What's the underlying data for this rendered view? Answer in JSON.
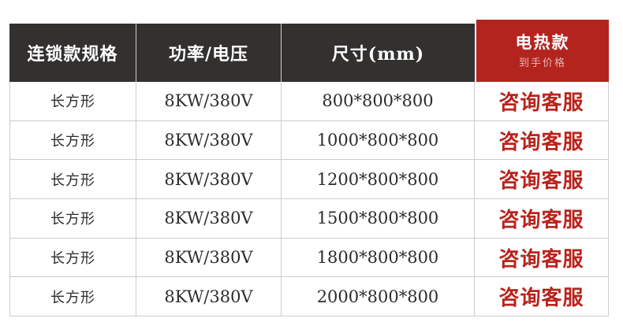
{
  "table": {
    "header": {
      "col_specs": "连锁款规格",
      "col_power": "功率/电压",
      "col_size": "尺寸(mm)",
      "col_price_title": "电热款",
      "col_price_sub": "到手价格"
    },
    "rows": [
      {
        "shape": "长方形",
        "power": "8KW/380V",
        "size": "800*800*800",
        "price": "咨询客服"
      },
      {
        "shape": "长方形",
        "power": "8KW/380V",
        "size": "1000*800*800",
        "price": "咨询客服"
      },
      {
        "shape": "长方形",
        "power": "8KW/380V",
        "size": "1200*800*800",
        "price": "咨询客服"
      },
      {
        "shape": "长方形",
        "power": "8KW/380V",
        "size": "1500*800*800",
        "price": "咨询客服"
      },
      {
        "shape": "长方形",
        "power": "8KW/380V",
        "size": "1800*800*800",
        "price": "咨询客服"
      },
      {
        "shape": "长方形",
        "power": "8KW/380V",
        "size": "2000*800*800",
        "price": "咨询客服"
      }
    ]
  },
  "colors": {
    "header_bg": "#333130",
    "accent_red": "#b4241f",
    "price_text_red": "#b9231c",
    "border": "#cccccc"
  }
}
